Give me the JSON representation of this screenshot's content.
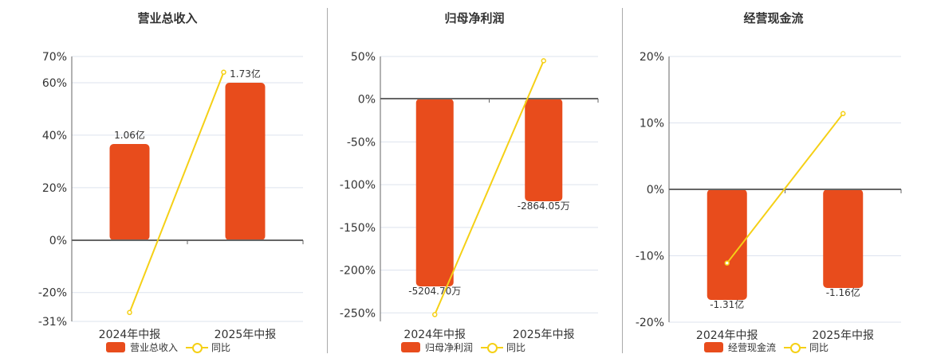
{
  "colors": {
    "bar": "#e84c1c",
    "line": "#f5d016",
    "grid": "#dde3ee",
    "axis": "#666"
  },
  "charts": [
    {
      "title": "营业总收入",
      "bar_legend": "营业总收入",
      "line_legend": "同比",
      "yticks": [
        "70%",
        "60%",
        "40%",
        "20%",
        "0%",
        "-20%",
        "-31%"
      ],
      "categories": [
        "2024年中报",
        "2025年中报"
      ],
      "bar_labels": [
        "1.06亿",
        "1.73亿"
      ]
    },
    {
      "title": "归母净利润",
      "bar_legend": "归母净利润",
      "line_legend": "同比",
      "yticks": [
        "50%",
        "0%",
        "-50%",
        "-100%",
        "-150%",
        "-200%",
        "-250%"
      ],
      "categories": [
        "2024年中报",
        "2025年中报"
      ],
      "bar_labels": [
        "-5204.70万",
        "-2864.05万"
      ]
    },
    {
      "title": "经营现金流",
      "bar_legend": "经营现金流",
      "line_legend": "同比",
      "yticks": [
        "20%",
        "10%",
        "0%",
        "-10%",
        "-20%"
      ],
      "categories": [
        "2024年中报",
        "2025年中报"
      ],
      "bar_labels": [
        "-1.31亿",
        "-1.16亿"
      ]
    }
  ],
  "chart_data": [
    {
      "type": "bar",
      "title": "营业总收入",
      "categories": [
        "2024年中报",
        "2025年中报"
      ],
      "series": [
        {
          "name": "营业总收入",
          "type": "bar",
          "values": [
            1.06,
            1.73
          ],
          "unit": "亿",
          "labels": [
            "1.06亿",
            "1.73亿"
          ]
        },
        {
          "name": "同比",
          "type": "line",
          "values": [
            -27.6,
            64.0
          ],
          "unit": "%"
        }
      ],
      "ylabel": "",
      "ylim": [
        -31,
        70
      ],
      "yticks": [
        70,
        60,
        40,
        20,
        0,
        -20,
        -31
      ],
      "legend_position": "bottom",
      "grid": true
    },
    {
      "type": "bar",
      "title": "归母净利润",
      "categories": [
        "2024年中报",
        "2025年中报"
      ],
      "series": [
        {
          "name": "归母净利润",
          "type": "bar",
          "values": [
            -5204.7,
            -2864.05
          ],
          "unit": "万",
          "labels": [
            "-5204.70万",
            "-2864.05万"
          ]
        },
        {
          "name": "同比",
          "type": "line",
          "values": [
            -252,
            45
          ],
          "unit": "%"
        }
      ],
      "ylabel": "",
      "ylim": [
        -260,
        50
      ],
      "yticks": [
        50,
        0,
        -50,
        -100,
        -150,
        -200,
        -250
      ],
      "legend_position": "bottom",
      "grid": true
    },
    {
      "type": "bar",
      "title": "经营现金流",
      "categories": [
        "2024年中报",
        "2025年中报"
      ],
      "series": [
        {
          "name": "经营现金流",
          "type": "bar",
          "values": [
            -1.31,
            -1.16
          ],
          "unit": "亿",
          "labels": [
            "-1.31亿",
            "-1.16亿"
          ]
        },
        {
          "name": "同比",
          "type": "line",
          "values": [
            -11.1,
            11.4
          ],
          "unit": "%"
        }
      ],
      "ylabel": "",
      "ylim": [
        -20,
        20
      ],
      "yticks": [
        20,
        10,
        0,
        -10,
        -20
      ],
      "legend_position": "bottom",
      "grid": true
    }
  ]
}
